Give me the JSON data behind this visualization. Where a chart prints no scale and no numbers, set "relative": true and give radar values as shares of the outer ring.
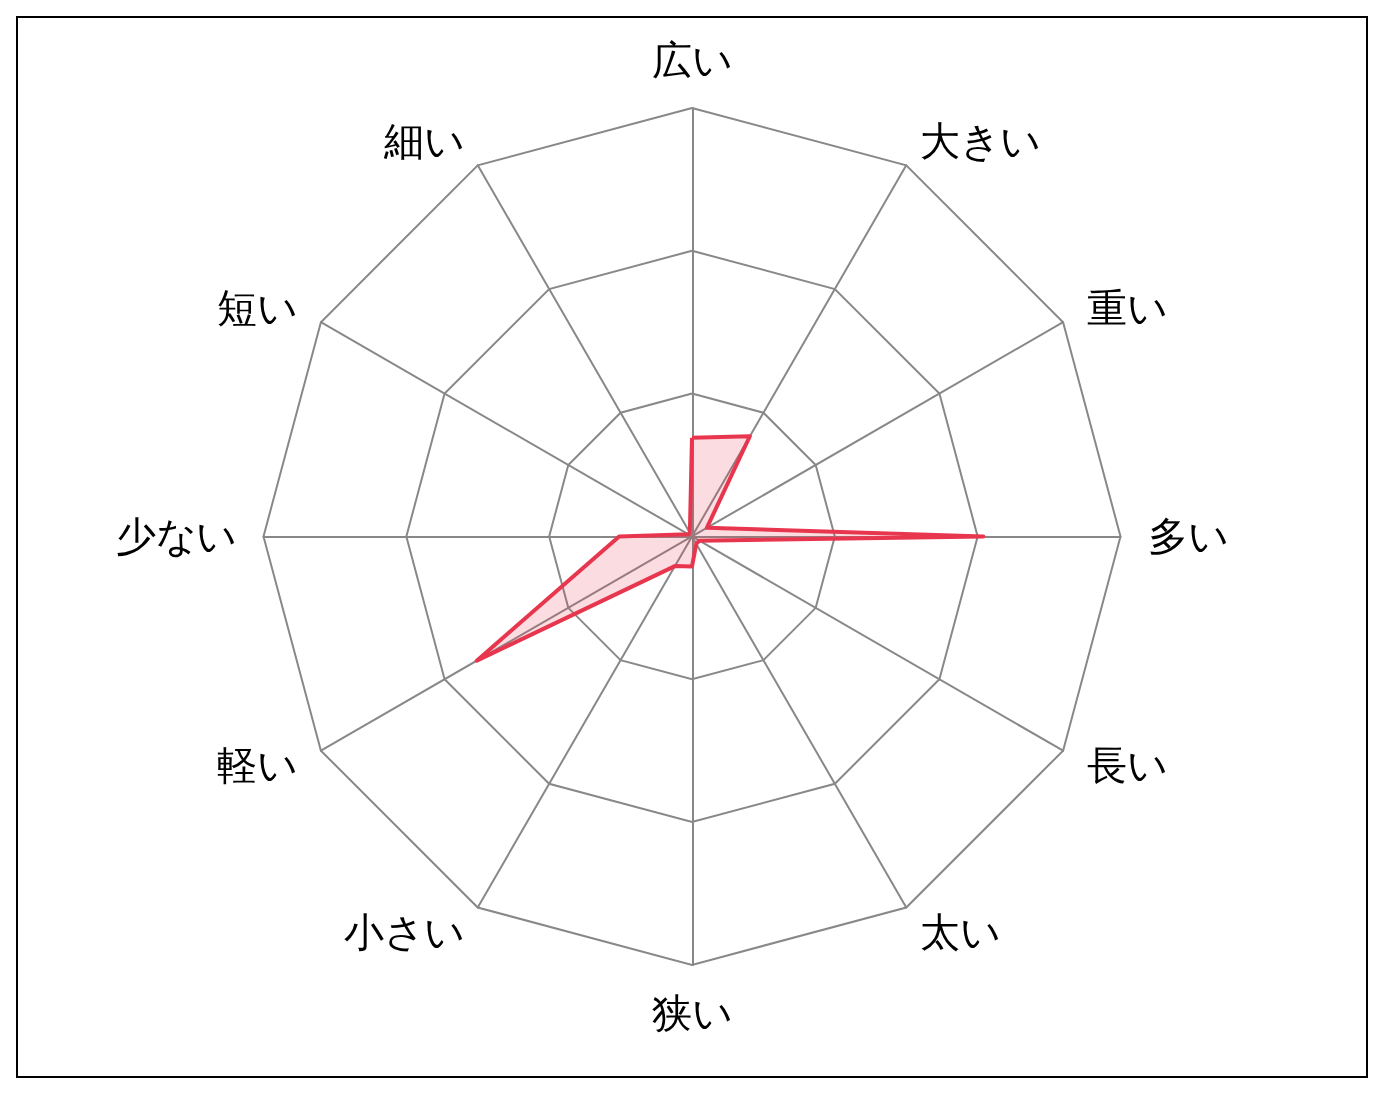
{
  "chart_data": {
    "type": "radar",
    "relative": true,
    "categories": [
      "広い",
      "大きい",
      "重い",
      "多い",
      "長い",
      "太い",
      "狭い",
      "小さい",
      "軽い",
      "少ない",
      "短い",
      "細い"
    ],
    "series": [
      {
        "color": "#e8364f",
        "values": [
          0.23,
          0.27,
          0.04,
          0.68,
          0.02,
          0.02,
          0.07,
          0.08,
          0.58,
          0.17,
          0.01,
          0.01
        ]
      }
    ],
    "grid": true,
    "marker": "none"
  }
}
